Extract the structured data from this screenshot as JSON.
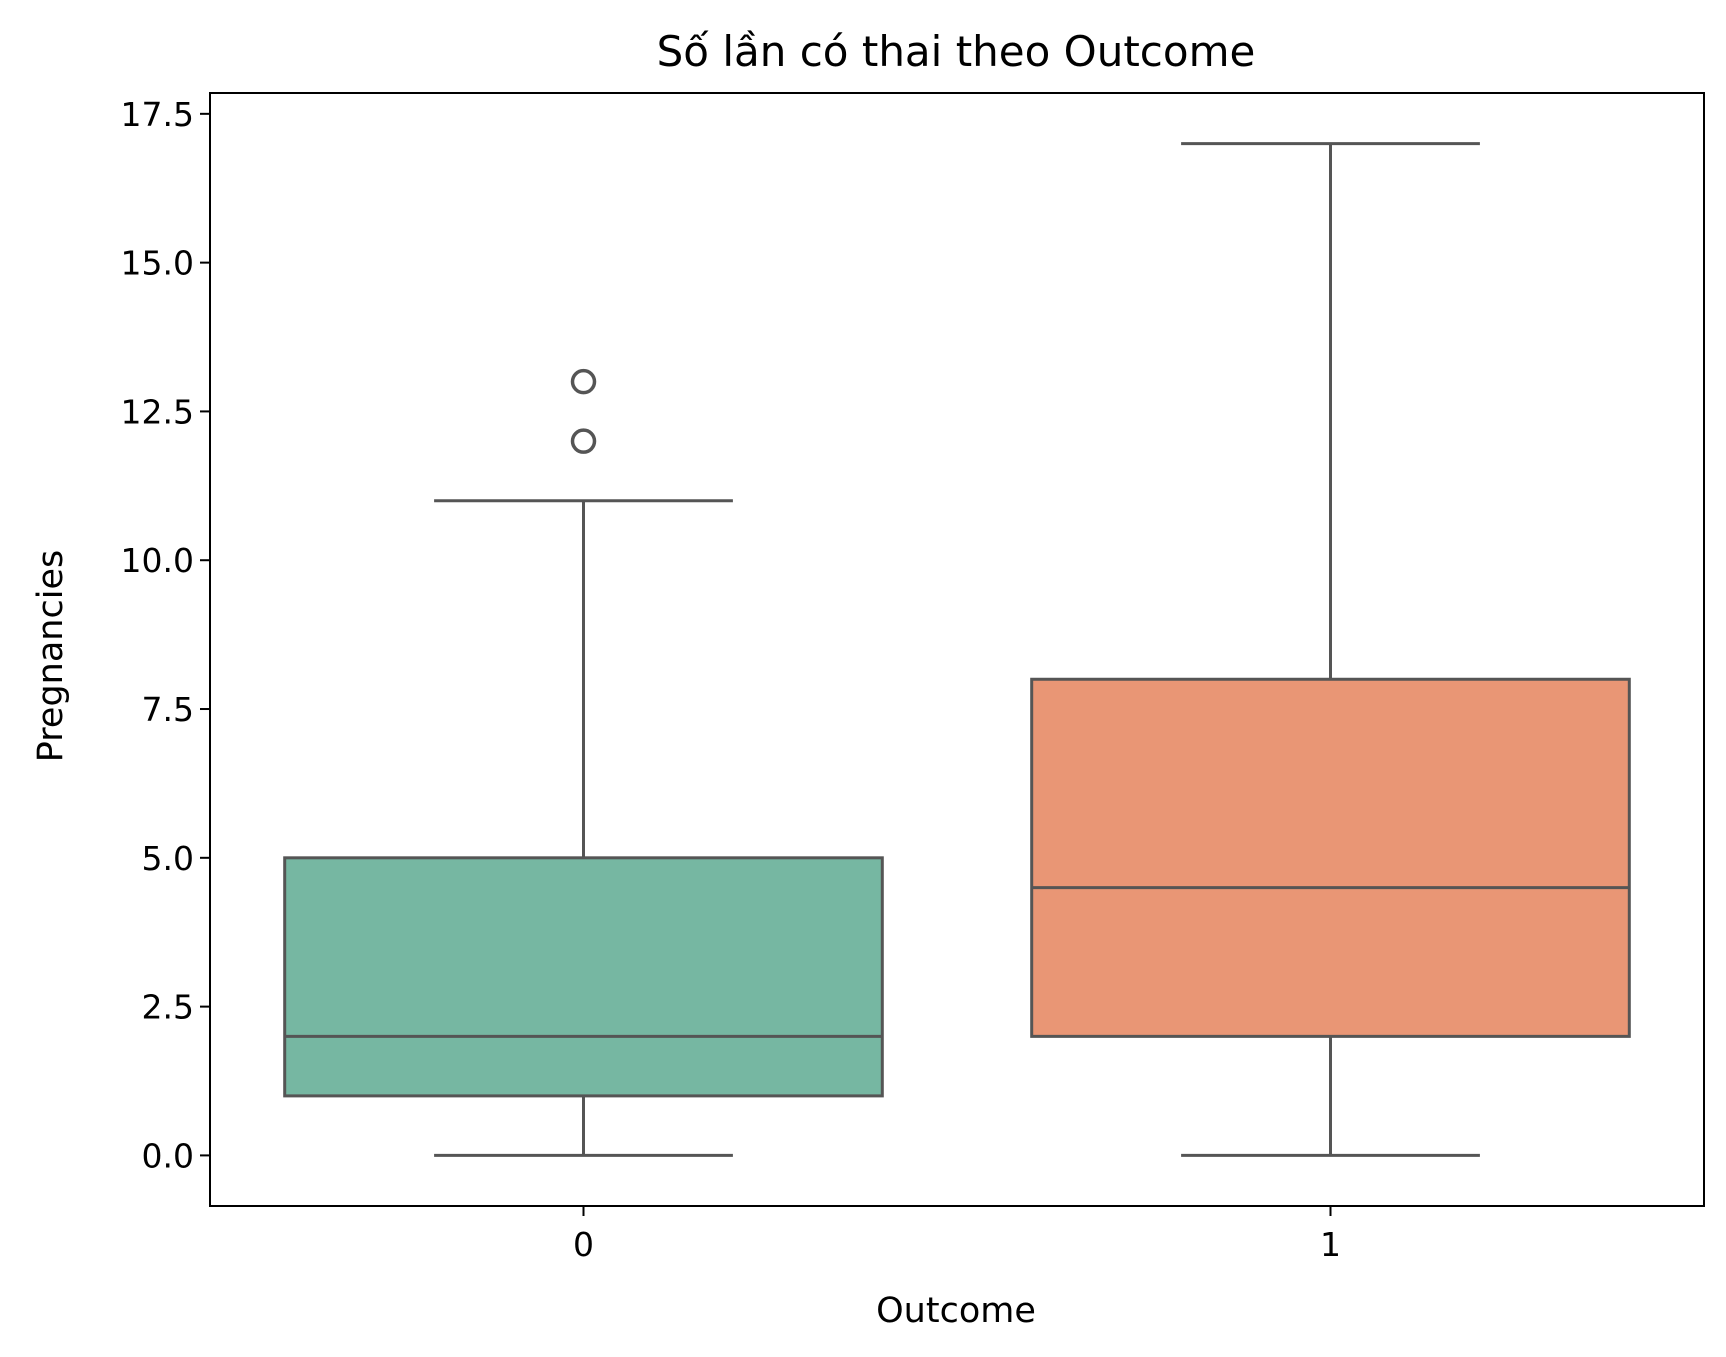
{
  "chart_data": {
    "type": "box",
    "title": "Số lần có thai theo Outcome",
    "xlabel": "Outcome",
    "ylabel": "Pregnancies",
    "categories": [
      "0",
      "1"
    ],
    "ylim": [
      -0.85,
      17.85
    ],
    "yticks": [
      0.0,
      2.5,
      5.0,
      7.5,
      10.0,
      12.5,
      15.0,
      17.5
    ],
    "ytick_labels": [
      "0.0",
      "2.5",
      "5.0",
      "7.5",
      "10.0",
      "12.5",
      "15.0",
      "17.5"
    ],
    "grid": false,
    "boxes": [
      {
        "category": "0",
        "whisker_low": 0,
        "q1": 1,
        "median": 2,
        "q3": 5,
        "whisker_high": 11,
        "outliers": [
          12,
          13
        ],
        "color": "#76b7a2"
      },
      {
        "category": "1",
        "whisker_low": 0,
        "q1": 2,
        "median": 4.5,
        "q3": 8,
        "whisker_high": 17,
        "outliers": [],
        "color": "#e99675"
      }
    ],
    "line_color": "#555555"
  }
}
